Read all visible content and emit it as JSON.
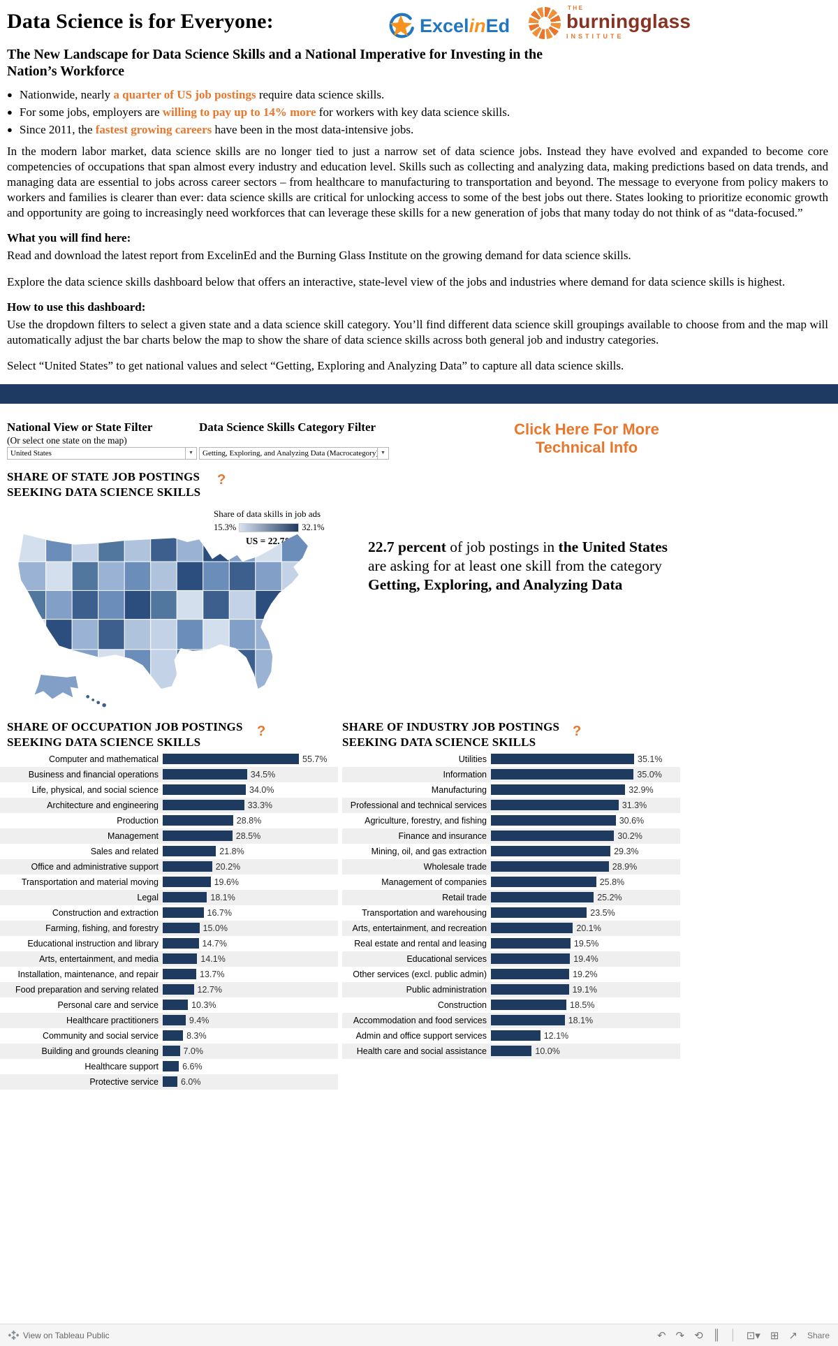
{
  "colors": {
    "navy_bar": "#1f3a62",
    "bar_fill": "#1f3a5f",
    "accent_orange": "#e8762c",
    "excelined_blue": "#2176bd",
    "excelined_orange": "#f6921e",
    "burningglass_red": "#8a3222",
    "map_gradient_min": "#d8e2f0",
    "map_gradient_max": "#1f3a5f",
    "zebra_gray": "#efefef"
  },
  "help_glyph": "?",
  "header": {
    "title": "Data Science is for Everyone:",
    "subtitle": "The New Landscape for Data Science Skills and a National Imperative for Investing in the Nation’s Workforce",
    "logos": {
      "excelined": {
        "excel": "Excel",
        "in": "in",
        "ed": "Ed"
      },
      "burningglass": {
        "the": "THE",
        "name": "burningglass",
        "institute": "INSTITUTE"
      }
    }
  },
  "bullets": [
    {
      "pre": "Nationwide, nearly ",
      "highlight": "a quarter of US job postings",
      "post": " require data science skills."
    },
    {
      "pre": "For some jobs, employers are ",
      "highlight": "willing to pay up to 14% more",
      "post": " for workers with key data science skills."
    },
    {
      "pre": "Since 2011, the ",
      "highlight": "fastest growing careers",
      "post": " have been in the most data-intensive jobs."
    }
  ],
  "intro": "In the modern labor market, data science skills are no longer tied to just a narrow set of data science jobs. Instead they have evolved and expanded to become core competencies of occupations that span almost every industry and education level. Skills such as collecting and analyzing data, making predictions based on data trends, and managing data are essential to jobs across career sectors – from healthcare to manufacturing to transportation and beyond. The message to everyone from policy makers to workers and families is clearer than ever: data science skills are critical for unlocking access to some of the best jobs out there. States looking to prioritize economic growth and opportunity are going to increasingly need workforces that can leverage these skills for a new generation of jobs that many today do not think of as “data-focused.”",
  "find_here": {
    "heading": "What you will find here:",
    "p1": "Read and download the latest report from ExcelinEd and the Burning Glass Institute on the growing demand for data science skills.",
    "p2": "Explore the data science skills dashboard below that offers an interactive, state-level view of the jobs and industries where demand for data science skills is highest."
  },
  "how_to": {
    "heading": "How to use this dashboard:",
    "p1": "Use the dropdown filters to select a given state and a data science skill category. You’ll find different data science skill groupings available to choose from and the map will automatically adjust the bar charts below the map to show the share of data science skills across both general job and industry categories.",
    "p2": "Select “United States” to get national values and select “Getting, Exploring and Analyzing Data” to capture all data science skills."
  },
  "filters": {
    "state_filter_label": "National View or State Filter",
    "state_filter_sub": "(Or select one state on the map)",
    "state_filter_value": "United States",
    "skills_filter_label": "Data Science Skills Category Filter",
    "skills_filter_value": "Getting, Exploring, and Analyzing Data (Macrocategory)",
    "technical_info_link": "Click Here For More Technical Info"
  },
  "map_section": {
    "heading_line1": "SHARE OF STATE JOB POSTINGS",
    "heading_line2": "SEEKING DATA SCIENCE SKILLS",
    "legend": {
      "title": "Share of data skills in job ads",
      "min": "15.3%",
      "max": "32.1%",
      "us_label": "US = 22.7%"
    },
    "callout": {
      "bold1": "22.7 percent",
      "t1": " of job postings in ",
      "bold2": "the United States",
      "t2": " are asking for at least one skill from the category ",
      "bold3": "Getting, Exploring, and Analyzing Data"
    }
  },
  "chart_data": [
    {
      "type": "bar",
      "title_line1": "SHARE OF OCCUPATION JOB POSTINGS",
      "title_line2": "SEEKING DATA SCIENCE SKILLS",
      "unit": "%",
      "xlim": [
        0,
        56
      ],
      "categories": [
        "Computer and mathematical",
        "Business and financial operations",
        "Life, physical, and social science",
        "Architecture and engineering",
        "Production",
        "Management",
        "Sales and related",
        "Office and administrative support",
        "Transportation and material moving",
        "Legal",
        "Construction and extraction",
        "Farming, fishing, and forestry",
        "Educational instruction and library",
        "Arts, entertainment, and media",
        "Installation, maintenance, and repair",
        "Food preparation and serving related",
        "Personal care and service",
        "Healthcare practitioners",
        "Community and social service",
        "Building and grounds cleaning",
        "Healthcare support",
        "Protective service"
      ],
      "values": [
        55.7,
        34.5,
        34.0,
        33.3,
        28.8,
        28.5,
        21.8,
        20.2,
        19.6,
        18.1,
        16.7,
        15.0,
        14.7,
        14.1,
        13.7,
        12.7,
        10.3,
        9.4,
        8.3,
        7.0,
        6.6,
        6.0
      ]
    },
    {
      "type": "bar",
      "title_line1": "SHARE OF INDUSTRY JOB POSTINGS",
      "title_line2": "SEEKING DATA SCIENCE SKILLS",
      "unit": "%",
      "xlim": [
        0,
        36
      ],
      "categories": [
        "Utilities",
        "Information",
        "Manufacturing",
        "Professional and technical services",
        "Agriculture, forestry, and fishing",
        "Finance and insurance",
        "Mining, oil, and gas extraction",
        "Wholesale trade",
        "Management of companies",
        "Retail trade",
        "Transportation and warehousing",
        "Arts, entertainment, and recreation",
        "Real estate and rental and leasing",
        "Educational services",
        "Other services (excl. public admin)",
        "Public administration",
        "Construction",
        "Accommodation and food services",
        "Admin and office support services",
        "Health care and social assistance"
      ],
      "values": [
        35.1,
        35.0,
        32.9,
        31.3,
        30.6,
        30.2,
        29.3,
        28.9,
        25.8,
        25.2,
        23.5,
        20.1,
        19.5,
        19.4,
        19.2,
        19.1,
        18.5,
        18.1,
        12.1,
        10.0
      ]
    }
  ],
  "footer": {
    "view_on": "View on Tableau Public",
    "share_label": "Share",
    "icons": [
      {
        "name": "undo-icon",
        "glyph": "↶",
        "interactable": true
      },
      {
        "name": "redo-icon",
        "glyph": "↷",
        "interactable": true
      },
      {
        "name": "reset-icon",
        "glyph": "⟲",
        "interactable": true
      },
      {
        "name": "pause-icon",
        "glyph": "║",
        "interactable": true
      },
      {
        "name": "separator",
        "glyph": "│",
        "interactable": false
      },
      {
        "name": "display-mode-icon",
        "glyph": "⊡▾",
        "interactable": true
      },
      {
        "name": "fullscreen-icon",
        "glyph": "⊞",
        "interactable": true
      },
      {
        "name": "share-icon",
        "glyph": "↗",
        "interactable": true
      }
    ]
  }
}
